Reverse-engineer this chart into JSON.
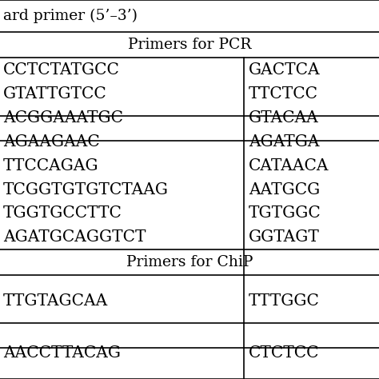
{
  "header_left": "ard primer (5’–3’)",
  "section1_label": "Primers for PCR",
  "section2_label": "Primers for ChiP",
  "left_col": [
    "CCTCTATGCC",
    "GTATTGTCC",
    "ACGGAAATGC",
    "AGAAGAAC",
    "TTCCAGAG",
    "TCGGTGTGTCTAAG",
    "TGGTGCCTTC",
    "AGATGCAGGTCT"
  ],
  "right_col": [
    "GACTCA",
    "TTCTCC",
    "GTACAA",
    "AGATGA",
    "CATAACA",
    "AATGCG",
    "TGTGGC",
    "GGTAGT"
  ],
  "chip_left": [
    "TTGTAGCAA",
    "AACCTTACAG"
  ],
  "chip_right": [
    "TTTGGC",
    "CTCTCC"
  ],
  "bg_color": "#ffffff",
  "text_color": "#000000",
  "line_color": "#000000",
  "font_size": 14.5,
  "section_font_size": 13.5
}
